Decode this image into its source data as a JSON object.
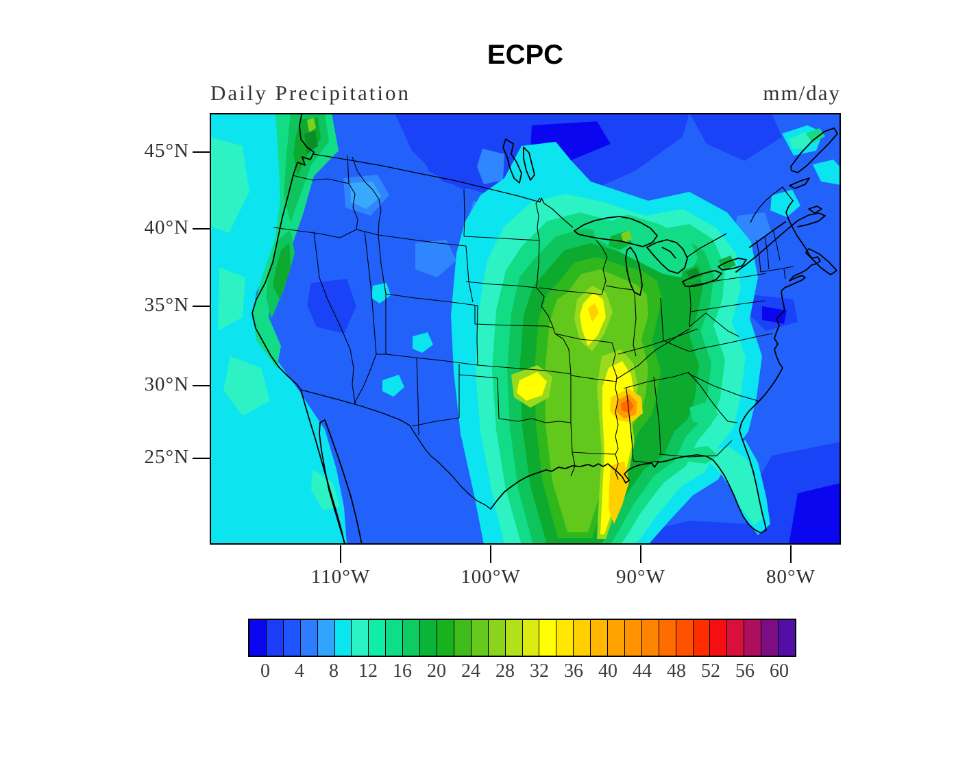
{
  "title": "ECPC",
  "subtitle": "Daily Precipitation",
  "units": "mm/day",
  "axes": {
    "lat_ticks": [
      "45°N",
      "40°N",
      "35°N",
      "30°N",
      "25°N"
    ],
    "lon_ticks": [
      "110°W",
      "100°W",
      "90°W",
      "80°W"
    ]
  },
  "colorbar": {
    "tick_labels": [
      "0",
      "4",
      "8",
      "12",
      "16",
      "20",
      "24",
      "28",
      "32",
      "36",
      "40",
      "44",
      "48",
      "52",
      "56",
      "60"
    ],
    "segment_colors": [
      "#0a06ef",
      "#1c3cfa",
      "#1e55ff",
      "#2e7dff",
      "#33a4fd",
      "#0ae6f0",
      "#2cf3c6",
      "#12eda6",
      "#0fdd88",
      "#0ccc62",
      "#0ab438",
      "#17b21e",
      "#40bb1c",
      "#66c91d",
      "#8bd41d",
      "#b2e11a",
      "#dcec11",
      "#ffff00",
      "#ffe700",
      "#ffcf00",
      "#ffb700",
      "#ffa300",
      "#ff9400",
      "#ff8400",
      "#ff6c00",
      "#ff5200",
      "#ff2e00",
      "#f60f12",
      "#d8103c",
      "#ad0e5e",
      "#7d0d82",
      "#530fa5"
    ]
  },
  "chart_data": {
    "type": "heatmap",
    "subtype": "filled_contour_map",
    "title": "ECPC",
    "variable": "Daily Precipitation",
    "units": "mm/day",
    "region": "Continental United States and surroundings",
    "lat_tick_values_deg_n": [
      45,
      40,
      35,
      30,
      25
    ],
    "lon_tick_values_deg_w": [
      110,
      100,
      90,
      80
    ],
    "levels": {
      "min": 0,
      "max": 62,
      "contour_interval": 2,
      "label_interval": 4
    },
    "legend_position": "bottom horizontal colorbar",
    "palette_order": "blue -> cyan -> green -> yellow -> orange -> red -> purple -> violet",
    "features": [
      {
        "region": "Pacific Northwest coastal band (WA/OR Cascades)",
        "approx_value_mm_day": "16-28",
        "note": "local maximum near Puget Sound"
      },
      {
        "region": "Northern California coast ranges / Sierra",
        "approx_value_mm_day": "14-22"
      },
      {
        "region": "Pacific offshore strip",
        "approx_value_mm_day": "10-14"
      },
      {
        "region": "Great Basin and interior West",
        "approx_value_mm_day": "2-8"
      },
      {
        "region": "Northern Plains / Canadian Prairies",
        "approx_value_mm_day": "0-6"
      },
      {
        "region": "Central Mississippi Valley (Missouri/Arkansas)",
        "approx_value_mm_day": "24-36",
        "note": "yellow streaks"
      },
      {
        "region": "Mississippi-Alabama border (~31N, 88W)",
        "approx_value_mm_day": "40-46",
        "note": "map maximum, orange core"
      },
      {
        "region": "Louisiana / Mississippi delta plume",
        "approx_value_mm_day": "32-40"
      },
      {
        "region": "Great Lakes area",
        "approx_value_mm_day": "10-20"
      },
      {
        "region": "Northeast US and Atlantic offshore",
        "approx_value_mm_day": "2-8"
      },
      {
        "region": "Southeast coast / Florida peninsula",
        "approx_value_mm_day": "8-16"
      },
      {
        "region": "Gulf of Mexico far offshore",
        "approx_value_mm_day": "2-8"
      }
    ]
  }
}
